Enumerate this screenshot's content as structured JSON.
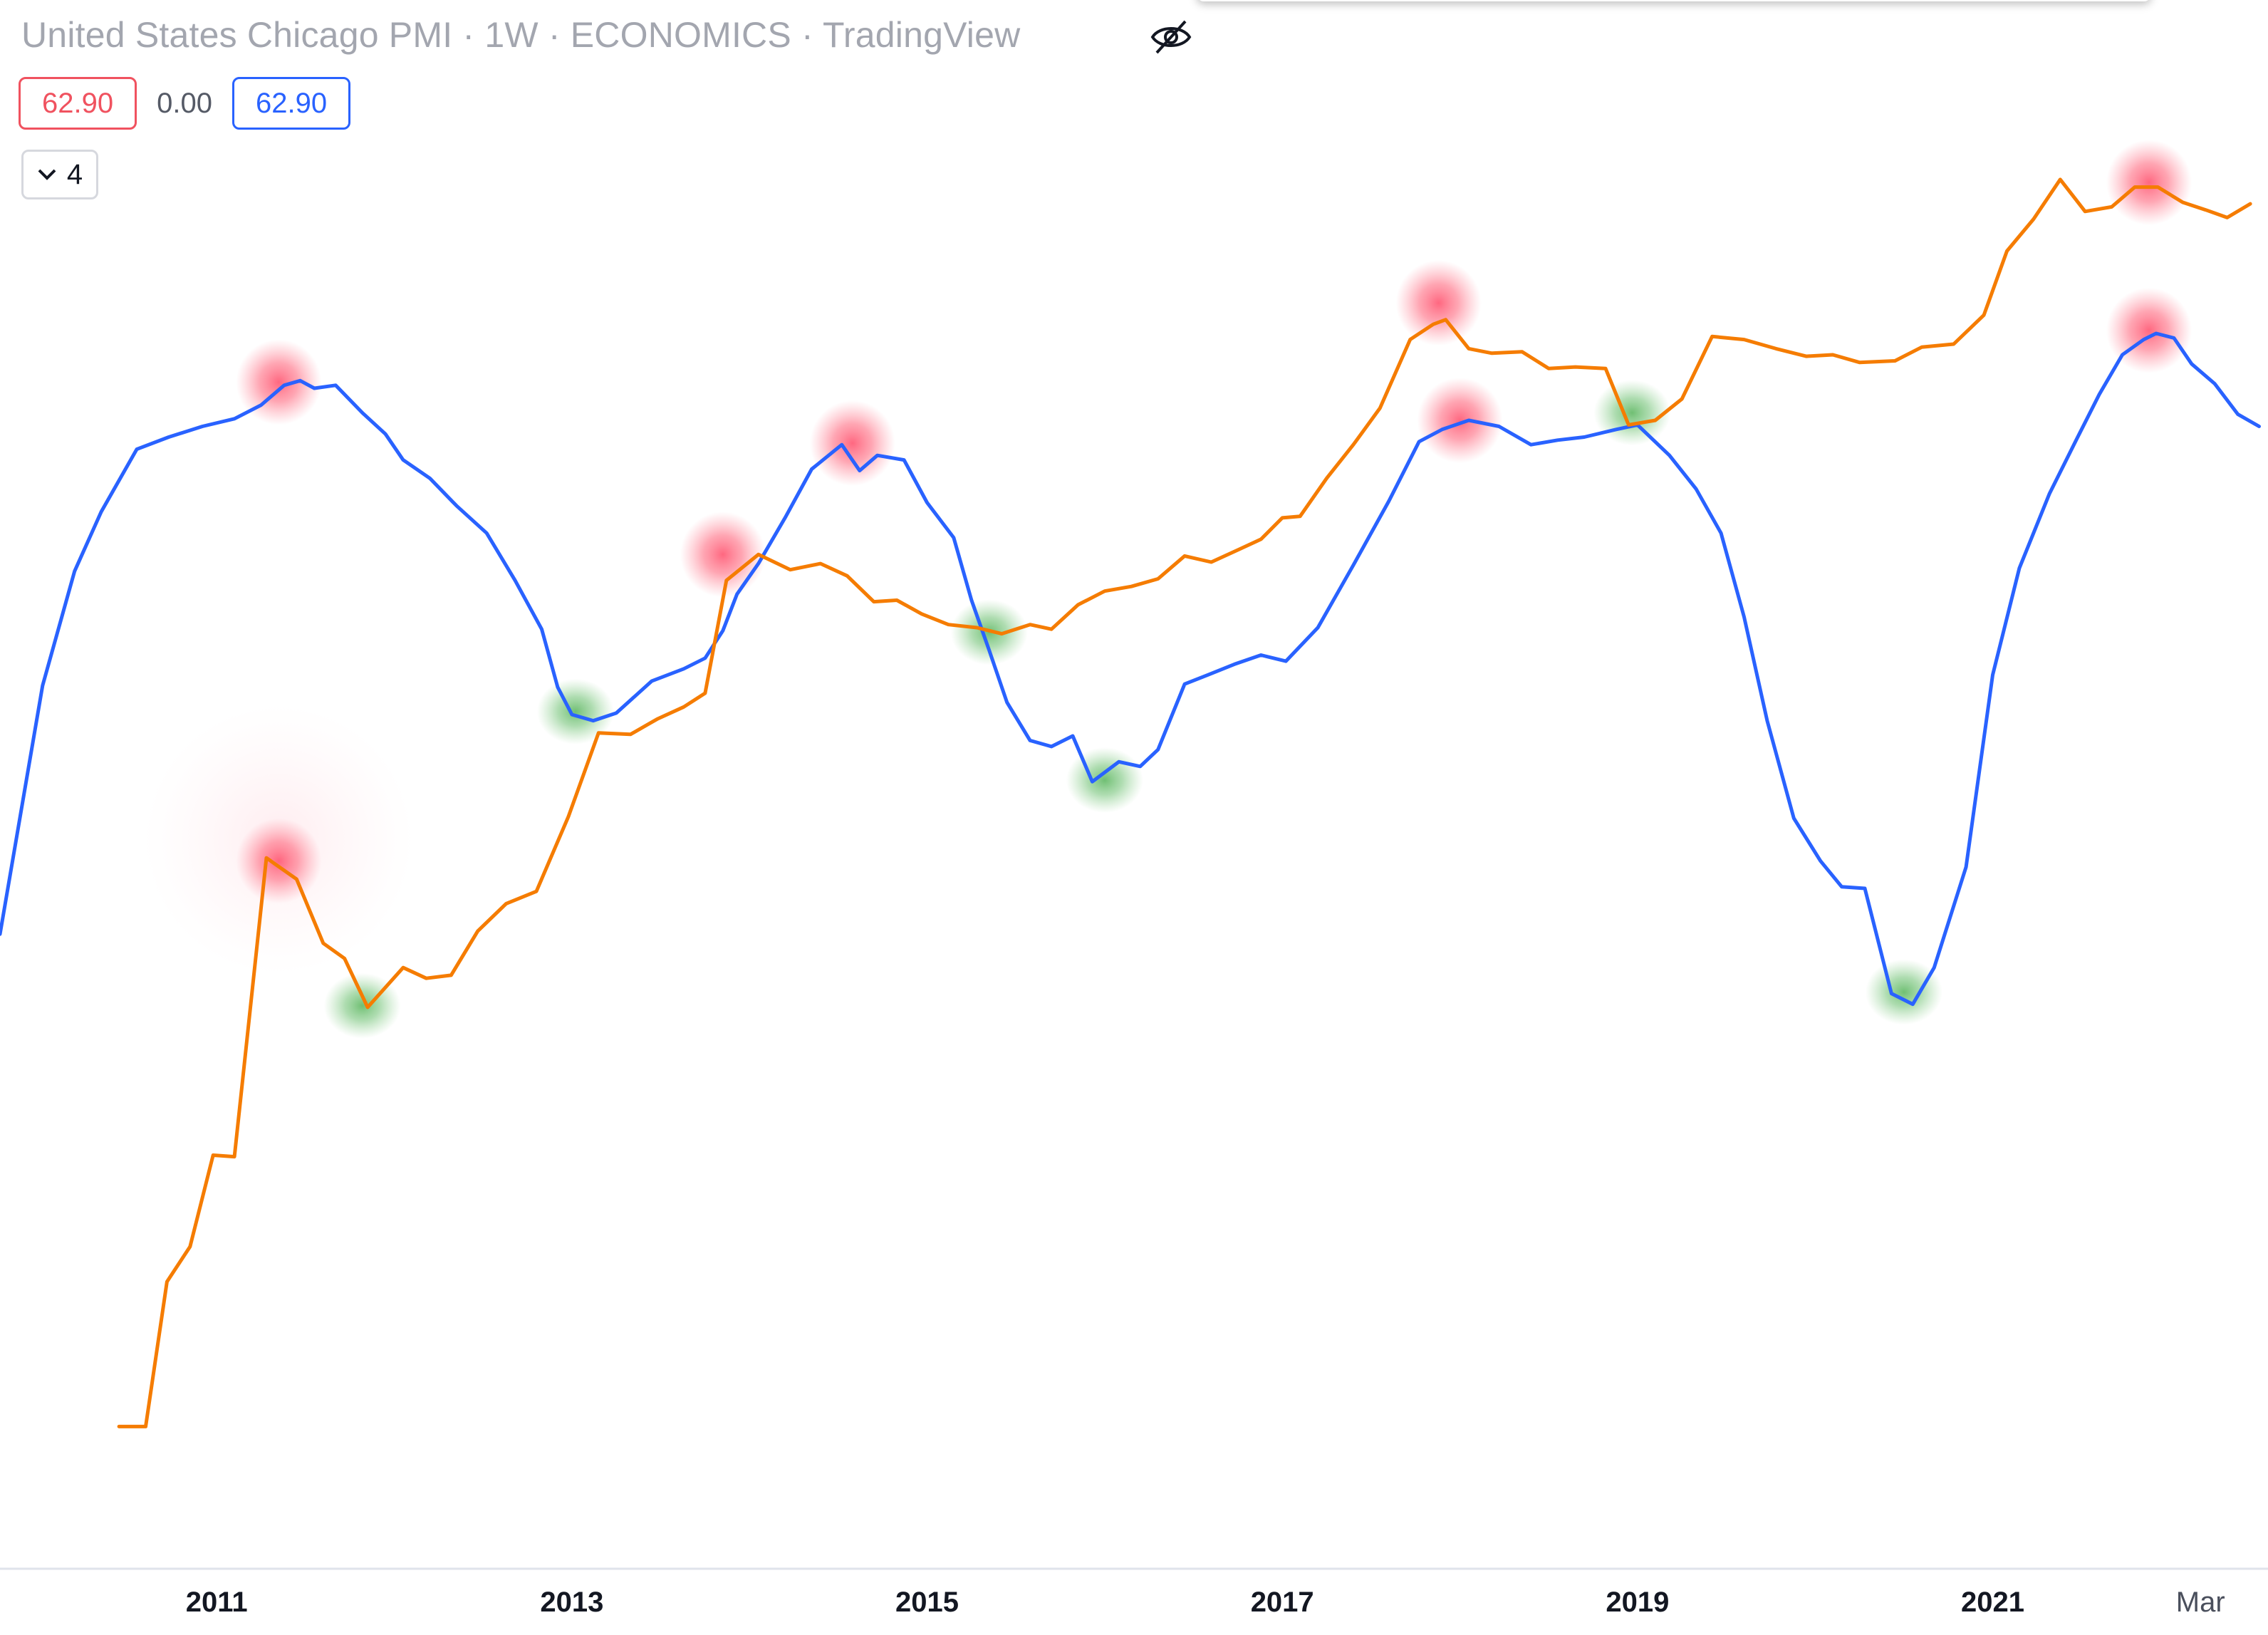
{
  "legend": {
    "title": "United States Chicago PMI · 1W · ECONOMICS · TradingView",
    "value_open": "62.90",
    "value_change": "0.00",
    "value_close": "62.90",
    "collapse_count": "4",
    "eye_icon": "eye-off-icon",
    "chevron_icon": "chevron-down-icon"
  },
  "colors": {
    "blue_series": "#2962ff",
    "orange_series": "#f57c00",
    "peak_marker": "#ff4d6a",
    "trough_marker": "#5cb85c",
    "axis_text": "#131722",
    "axis_line": "#e0e3eb"
  },
  "chart_data": {
    "type": "line",
    "x_axis": {
      "tick_labels": [
        "2011",
        "2013",
        "2015",
        "2017",
        "2019",
        "2021",
        "Mar"
      ],
      "tick_positions": [
        2011.0,
        2013.0,
        2015.0,
        2017.0,
        2019.0,
        2021.0,
        2022.17
      ],
      "range": [
        2009.78,
        2022.55
      ]
    },
    "y_axis": {
      "range": [
        0,
        100
      ],
      "visible": false
    },
    "grid": false,
    "series": [
      {
        "color": "#2962ff",
        "points": [
          [
            2009.78,
            40.6
          ],
          [
            2010.02,
            56.9
          ],
          [
            2010.2,
            64.4
          ],
          [
            2010.35,
            68.3
          ],
          [
            2010.55,
            72.4
          ],
          [
            2010.73,
            73.2
          ],
          [
            2010.92,
            73.9
          ],
          [
            2011.1,
            74.4
          ],
          [
            2011.25,
            75.3
          ],
          [
            2011.38,
            76.6
          ],
          [
            2011.47,
            76.9
          ],
          [
            2011.55,
            76.4
          ],
          [
            2011.67,
            76.6
          ],
          [
            2011.82,
            74.8
          ],
          [
            2011.95,
            73.4
          ],
          [
            2012.05,
            71.7
          ],
          [
            2012.2,
            70.5
          ],
          [
            2012.35,
            68.7
          ],
          [
            2012.52,
            66.9
          ],
          [
            2012.68,
            63.8
          ],
          [
            2012.83,
            60.6
          ],
          [
            2012.92,
            56.8
          ],
          [
            2013.0,
            55.0
          ],
          [
            2013.12,
            54.6
          ],
          [
            2013.25,
            55.1
          ],
          [
            2013.45,
            57.2
          ],
          [
            2013.63,
            58.0
          ],
          [
            2013.75,
            58.7
          ],
          [
            2013.85,
            60.5
          ],
          [
            2013.93,
            62.9
          ],
          [
            2014.05,
            64.9
          ],
          [
            2014.2,
            67.9
          ],
          [
            2014.35,
            71.1
          ],
          [
            2014.52,
            72.7
          ],
          [
            2014.62,
            71.0
          ],
          [
            2014.72,
            72.0
          ],
          [
            2014.87,
            71.7
          ],
          [
            2015.0,
            68.9
          ],
          [
            2015.15,
            66.6
          ],
          [
            2015.25,
            62.5
          ],
          [
            2015.35,
            59.2
          ],
          [
            2015.45,
            55.8
          ],
          [
            2015.58,
            53.3
          ],
          [
            2015.7,
            52.9
          ],
          [
            2015.82,
            53.6
          ],
          [
            2015.93,
            50.6
          ],
          [
            2016.08,
            51.9
          ],
          [
            2016.2,
            51.6
          ],
          [
            2016.3,
            52.7
          ],
          [
            2016.45,
            57.0
          ],
          [
            2016.58,
            57.6
          ],
          [
            2016.73,
            58.3
          ],
          [
            2016.88,
            58.9
          ],
          [
            2017.02,
            58.5
          ],
          [
            2017.2,
            60.7
          ],
          [
            2017.4,
            64.8
          ],
          [
            2017.6,
            69.0
          ],
          [
            2017.77,
            72.9
          ],
          [
            2017.9,
            73.7
          ],
          [
            2018.05,
            74.3
          ],
          [
            2018.22,
            73.9
          ],
          [
            2018.4,
            72.7
          ],
          [
            2018.55,
            73.0
          ],
          [
            2018.7,
            73.2
          ],
          [
            2018.88,
            73.7
          ],
          [
            2019.0,
            74.0
          ],
          [
            2019.18,
            72.0
          ],
          [
            2019.33,
            69.8
          ],
          [
            2019.47,
            66.9
          ],
          [
            2019.6,
            61.4
          ],
          [
            2019.73,
            54.6
          ],
          [
            2019.88,
            48.2
          ],
          [
            2020.03,
            45.4
          ],
          [
            2020.15,
            43.7
          ],
          [
            2020.28,
            43.6
          ],
          [
            2020.43,
            36.7
          ],
          [
            2020.55,
            36.0
          ],
          [
            2020.67,
            38.4
          ],
          [
            2020.85,
            45.0
          ],
          [
            2021.0,
            57.6
          ],
          [
            2021.15,
            64.6
          ],
          [
            2021.32,
            69.5
          ],
          [
            2021.47,
            73.0
          ],
          [
            2021.6,
            76.0
          ],
          [
            2021.73,
            78.6
          ],
          [
            2021.85,
            79.6
          ],
          [
            2021.92,
            80.0
          ],
          [
            2022.02,
            79.7
          ],
          [
            2022.12,
            78.0
          ],
          [
            2022.25,
            76.7
          ],
          [
            2022.38,
            74.7
          ],
          [
            2022.5,
            73.9
          ]
        ]
      },
      {
        "color": "#f57c00",
        "points": [
          [
            2010.45,
            8.3
          ],
          [
            2010.6,
            8.3
          ],
          [
            2010.72,
            17.8
          ],
          [
            2010.85,
            20.1
          ],
          [
            2010.98,
            26.1
          ],
          [
            2011.1,
            26.0
          ],
          [
            2011.28,
            45.6
          ],
          [
            2011.45,
            44.2
          ],
          [
            2011.6,
            40.0
          ],
          [
            2011.72,
            39.0
          ],
          [
            2011.85,
            35.8
          ],
          [
            2012.05,
            38.4
          ],
          [
            2012.18,
            37.7
          ],
          [
            2012.32,
            37.9
          ],
          [
            2012.47,
            40.8
          ],
          [
            2012.63,
            42.6
          ],
          [
            2012.8,
            43.4
          ],
          [
            2012.98,
            48.3
          ],
          [
            2013.15,
            53.8
          ],
          [
            2013.33,
            53.7
          ],
          [
            2013.48,
            54.7
          ],
          [
            2013.63,
            55.5
          ],
          [
            2013.75,
            56.4
          ],
          [
            2013.87,
            63.8
          ],
          [
            2014.05,
            65.5
          ],
          [
            2014.23,
            64.5
          ],
          [
            2014.4,
            64.9
          ],
          [
            2014.55,
            64.1
          ],
          [
            2014.7,
            62.4
          ],
          [
            2014.83,
            62.5
          ],
          [
            2014.97,
            61.6
          ],
          [
            2015.12,
            60.9
          ],
          [
            2015.28,
            60.7
          ],
          [
            2015.42,
            60.3
          ],
          [
            2015.58,
            60.9
          ],
          [
            2015.7,
            60.6
          ],
          [
            2015.85,
            62.2
          ],
          [
            2016.0,
            63.1
          ],
          [
            2016.15,
            63.4
          ],
          [
            2016.3,
            63.9
          ],
          [
            2016.45,
            65.4
          ],
          [
            2016.6,
            65.0
          ],
          [
            2016.75,
            65.8
          ],
          [
            2016.88,
            66.5
          ],
          [
            2017.0,
            67.9
          ],
          [
            2017.1,
            68.0
          ],
          [
            2017.25,
            70.5
          ],
          [
            2017.4,
            72.7
          ],
          [
            2017.55,
            75.1
          ],
          [
            2017.72,
            79.6
          ],
          [
            2017.85,
            80.6
          ],
          [
            2017.92,
            80.9
          ],
          [
            2018.05,
            79.0
          ],
          [
            2018.18,
            78.7
          ],
          [
            2018.35,
            78.8
          ],
          [
            2018.5,
            77.7
          ],
          [
            2018.65,
            77.8
          ],
          [
            2018.82,
            77.7
          ],
          [
            2018.95,
            74.0
          ],
          [
            2019.1,
            74.3
          ],
          [
            2019.25,
            75.7
          ],
          [
            2019.42,
            79.8
          ],
          [
            2019.6,
            79.6
          ],
          [
            2019.78,
            79.0
          ],
          [
            2019.95,
            78.5
          ],
          [
            2020.1,
            78.6
          ],
          [
            2020.25,
            78.1
          ],
          [
            2020.45,
            78.2
          ],
          [
            2020.6,
            79.1
          ],
          [
            2020.78,
            79.3
          ],
          [
            2020.95,
            81.2
          ],
          [
            2021.08,
            85.4
          ],
          [
            2021.23,
            87.5
          ],
          [
            2021.38,
            90.1
          ],
          [
            2021.52,
            88.0
          ],
          [
            2021.67,
            88.3
          ],
          [
            2021.8,
            89.6
          ],
          [
            2021.93,
            89.6
          ],
          [
            2022.07,
            88.6
          ],
          [
            2022.2,
            88.1
          ],
          [
            2022.32,
            87.6
          ],
          [
            2022.45,
            88.5
          ]
        ]
      }
    ],
    "markers": [
      {
        "x": 2011.35,
        "y": 76.8,
        "type": "peak",
        "series_color": "#2962ff"
      },
      {
        "x": 2011.35,
        "y": 45.4,
        "type": "peak",
        "series_color": "#f57c00",
        "halo": true
      },
      {
        "x": 2011.82,
        "y": 35.9,
        "type": "trough",
        "series_color": "#f57c00"
      },
      {
        "x": 2013.02,
        "y": 55.2,
        "type": "trough",
        "series_color": "#2962ff"
      },
      {
        "x": 2013.85,
        "y": 65.5,
        "type": "peak",
        "series_color": "#f57c00"
      },
      {
        "x": 2014.58,
        "y": 72.8,
        "type": "peak",
        "series_color": "#2962ff"
      },
      {
        "x": 2015.35,
        "y": 60.4,
        "type": "trough",
        "series_color": "#f57c00"
      },
      {
        "x": 2016.0,
        "y": 50.7,
        "type": "trough",
        "series_color": "#2962ff"
      },
      {
        "x": 2017.88,
        "y": 82.0,
        "type": "peak",
        "series_color": "#f57c00"
      },
      {
        "x": 2018.0,
        "y": 74.3,
        "type": "peak",
        "series_color": "#2962ff"
      },
      {
        "x": 2018.97,
        "y": 74.8,
        "type": "trough",
        "series_color": "#f57c00"
      },
      {
        "x": 2020.5,
        "y": 36.8,
        "type": "trough",
        "series_color": "#2962ff"
      },
      {
        "x": 2021.88,
        "y": 80.2,
        "type": "peak",
        "series_color": "#2962ff"
      },
      {
        "x": 2021.88,
        "y": 89.9,
        "type": "peak",
        "series_color": "#f57c00"
      }
    ]
  }
}
